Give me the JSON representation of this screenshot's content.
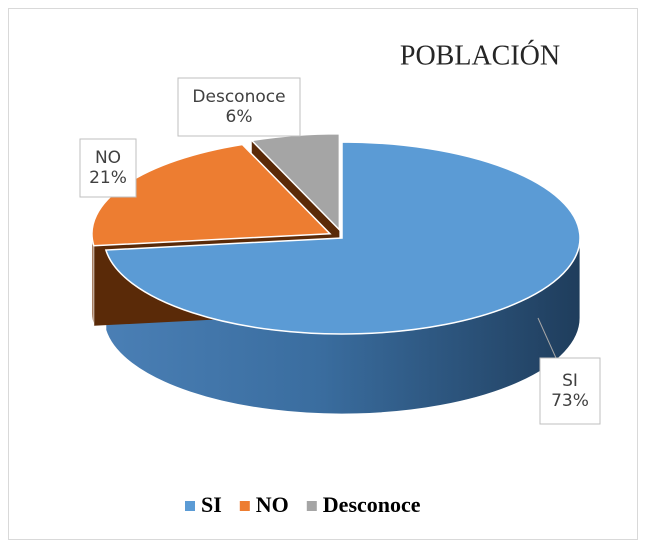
{
  "chart_data": {
    "type": "pie",
    "title": "POBLACIÓN",
    "categories": [
      "SI",
      "NO",
      "Desconoce"
    ],
    "values": [
      73,
      21,
      6
    ],
    "value_labels": [
      "73%",
      "21%",
      "6%"
    ],
    "colors": [
      "#5b9bd5",
      "#ed7d31",
      "#a5a5a5"
    ],
    "legend": "bottom"
  }
}
